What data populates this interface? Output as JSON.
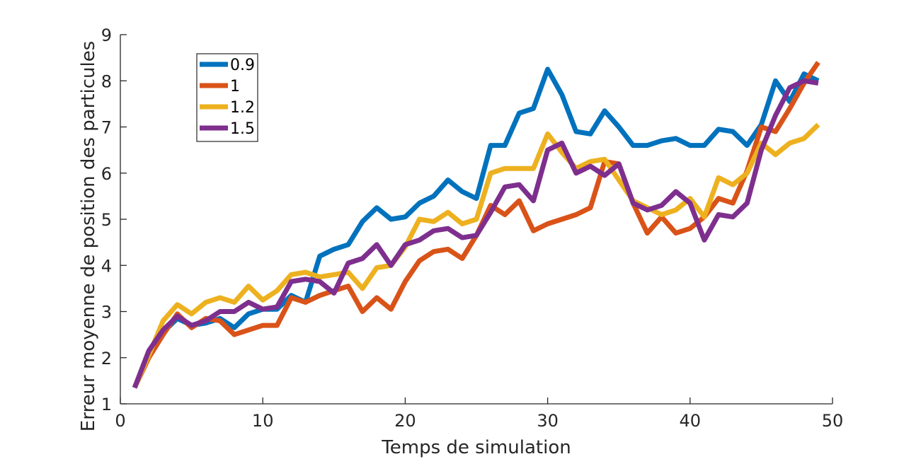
{
  "chart_data": {
    "type": "line",
    "title": "",
    "xlabel": "Temps de simulation",
    "ylabel": "Erreur moyenne de position des particules",
    "xlim": [
      0,
      50
    ],
    "ylim": [
      1,
      9
    ],
    "xticks": [
      0,
      10,
      20,
      30,
      40,
      50
    ],
    "yticks": [
      1,
      2,
      3,
      4,
      5,
      6,
      7,
      8,
      9
    ],
    "grid": false,
    "legend_position": "top-left",
    "x": [
      1,
      2,
      3,
      4,
      5,
      6,
      7,
      8,
      9,
      10,
      11,
      12,
      13,
      14,
      15,
      16,
      17,
      18,
      19,
      20,
      21,
      22,
      23,
      24,
      25,
      26,
      27,
      28,
      29,
      30,
      31,
      32,
      33,
      34,
      35,
      36,
      37,
      38,
      39,
      40,
      41,
      42,
      43,
      44,
      45,
      46,
      47,
      48,
      49
    ],
    "series": [
      {
        "name": "0.9",
        "color": "#0072BD",
        "values": [
          1.35,
          2.1,
          2.55,
          2.85,
          2.7,
          2.75,
          2.85,
          2.65,
          2.95,
          3.05,
          3.05,
          3.35,
          3.2,
          4.2,
          4.35,
          4.45,
          4.95,
          5.25,
          5.0,
          5.05,
          5.35,
          5.5,
          5.85,
          5.6,
          5.45,
          6.6,
          6.6,
          7.3,
          7.4,
          8.25,
          7.7,
          6.9,
          6.85,
          7.35,
          7.0,
          6.6,
          6.6,
          6.7,
          6.75,
          6.6,
          6.6,
          6.95,
          6.9,
          6.6,
          7.05,
          8.0,
          7.55,
          8.15,
          8.0
        ]
      },
      {
        "name": "1",
        "color": "#D95319",
        "values": [
          1.35,
          2.0,
          2.5,
          2.95,
          2.65,
          2.85,
          2.8,
          2.5,
          2.6,
          2.7,
          2.7,
          3.3,
          3.2,
          3.35,
          3.45,
          3.55,
          3.0,
          3.3,
          3.05,
          3.65,
          4.1,
          4.3,
          4.35,
          4.15,
          4.65,
          5.3,
          5.1,
          5.4,
          4.75,
          4.9,
          5.0,
          5.1,
          5.25,
          6.25,
          6.2,
          5.35,
          4.7,
          5.05,
          4.7,
          4.8,
          5.05,
          5.45,
          5.35,
          6.05,
          7.0,
          6.9,
          7.4,
          7.95,
          8.4
        ]
      },
      {
        "name": "1.2",
        "color": "#EDB120",
        "values": [
          1.35,
          2.05,
          2.8,
          3.15,
          2.95,
          3.2,
          3.3,
          3.2,
          3.55,
          3.25,
          3.45,
          3.8,
          3.85,
          3.75,
          3.8,
          3.85,
          3.5,
          3.95,
          4.0,
          4.4,
          5.0,
          4.95,
          5.15,
          4.9,
          5.0,
          6.0,
          6.1,
          6.1,
          6.1,
          6.85,
          6.45,
          6.1,
          6.25,
          6.3,
          5.85,
          5.4,
          5.25,
          5.1,
          5.2,
          5.45,
          5.05,
          5.9,
          5.75,
          6.0,
          6.65,
          6.4,
          6.65,
          6.75,
          7.05
        ]
      },
      {
        "name": "1.5",
        "color": "#7E2F8E",
        "values": [
          1.35,
          2.15,
          2.6,
          2.9,
          2.7,
          2.8,
          3.0,
          3.0,
          3.2,
          3.05,
          3.1,
          3.65,
          3.7,
          3.65,
          3.4,
          4.05,
          4.15,
          4.45,
          4.0,
          4.45,
          4.55,
          4.75,
          4.8,
          4.6,
          4.65,
          5.15,
          5.7,
          5.75,
          5.4,
          6.5,
          6.65,
          6.0,
          6.15,
          5.95,
          6.2,
          5.35,
          5.2,
          5.3,
          5.6,
          5.35,
          4.55,
          5.1,
          5.05,
          5.35,
          6.5,
          7.25,
          7.85,
          8.0,
          7.95
        ]
      }
    ]
  }
}
